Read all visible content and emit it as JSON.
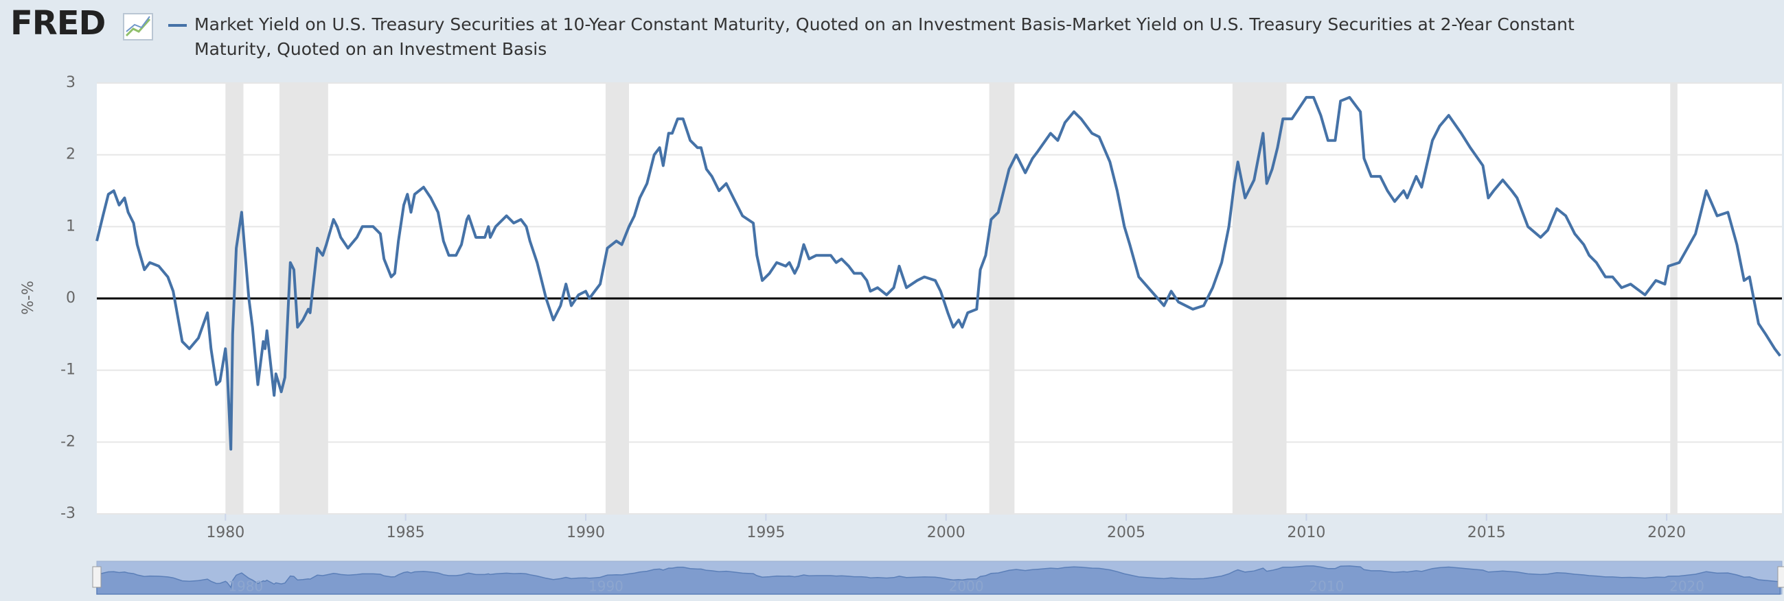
{
  "logo": "FRED",
  "chart_data": {
    "type": "line",
    "y_label": "%-%",
    "x": [
      1976.43,
      1976.6,
      1976.75,
      1976.9,
      1977.05,
      1977.2,
      1977.3,
      1977.45,
      1977.55,
      1977.75,
      1977.9,
      1978.15,
      1978.4,
      1978.55,
      1978.8,
      1979.0,
      1979.25,
      1979.5,
      1979.6,
      1979.75,
      1979.85,
      1980.0,
      1980.05,
      1980.15,
      1980.2,
      1980.3,
      1980.45,
      1980.65,
      1980.75,
      1980.9,
      1981.05,
      1981.1,
      1981.15,
      1981.35,
      1981.4,
      1981.55,
      1981.65,
      1981.8,
      1981.9,
      1982.0,
      1982.15,
      1982.3,
      1982.35,
      1982.55,
      1982.7,
      1982.8,
      1983.0,
      1983.1,
      1983.2,
      1983.4,
      1983.65,
      1983.8,
      1984.1,
      1984.3,
      1984.4,
      1984.6,
      1984.7,
      1984.8,
      1984.95,
      1985.05,
      1985.15,
      1985.25,
      1985.5,
      1985.7,
      1985.9,
      1986.05,
      1986.2,
      1986.4,
      1986.55,
      1986.7,
      1986.75,
      1986.95,
      1987.2,
      1987.3,
      1987.35,
      1987.5,
      1987.8,
      1988.0,
      1988.2,
      1988.35,
      1988.45,
      1988.65,
      1988.9,
      1989.1,
      1989.3,
      1989.45,
      1989.6,
      1989.8,
      1990.0,
      1990.1,
      1990.25,
      1990.4,
      1990.6,
      1990.85,
      1991.0,
      1991.2,
      1991.35,
      1991.5,
      1991.7,
      1991.9,
      1992.05,
      1992.15,
      1992.3,
      1992.4,
      1992.55,
      1992.7,
      1992.9,
      1993.1,
      1993.2,
      1993.35,
      1993.5,
      1993.7,
      1993.9,
      1994.1,
      1994.35,
      1994.65,
      1994.75,
      1994.9,
      1995.1,
      1995.3,
      1995.55,
      1995.65,
      1995.8,
      1995.9,
      1996.05,
      1996.2,
      1996.4,
      1996.8,
      1996.95,
      1997.1,
      1997.3,
      1997.45,
      1997.65,
      1997.8,
      1997.9,
      1998.1,
      1998.35,
      1998.55,
      1998.7,
      1998.9,
      1999.2,
      1999.4,
      1999.7,
      1999.85,
      2000.05,
      2000.2,
      2000.35,
      2000.45,
      2000.6,
      2000.85,
      2000.95,
      2001.1,
      2001.25,
      2001.45,
      2001.75,
      2001.95,
      2002.2,
      2002.4,
      2002.55,
      2002.9,
      2003.1,
      2003.3,
      2003.55,
      2003.75,
      2004.05,
      2004.25,
      2004.55,
      2004.75,
      2004.95,
      2005.1,
      2005.35,
      2005.7,
      2006.05,
      2006.25,
      2006.45,
      2006.85,
      2007.15,
      2007.4,
      2007.65,
      2007.85,
      2008.0,
      2008.1,
      2008.3,
      2008.55,
      2008.8,
      2008.9,
      2009.05,
      2009.2,
      2009.35,
      2009.6,
      2010.0,
      2010.2,
      2010.4,
      2010.6,
      2010.8,
      2010.95,
      2011.2,
      2011.5,
      2011.6,
      2011.8,
      2012.05,
      2012.25,
      2012.45,
      2012.7,
      2012.8,
      2013.05,
      2013.2,
      2013.5,
      2013.7,
      2013.95,
      2014.3,
      2014.55,
      2014.9,
      2015.05,
      2015.2,
      2015.45,
      2015.7,
      2015.85,
      2016.15,
      2016.5,
      2016.7,
      2016.95,
      2017.2,
      2017.45,
      2017.7,
      2017.85,
      2018.05,
      2018.3,
      2018.5,
      2018.75,
      2019.0,
      2019.4,
      2019.7,
      2019.95,
      2020.05,
      2020.35,
      2020.8,
      2021.1,
      2021.4,
      2021.7,
      2021.95,
      2022.15,
      2022.3,
      2022.55,
      2022.75,
      2023.0,
      2023.15
    ],
    "series": [
      {
        "name": "Market Yield on U.S. Treasury Securities at 10-Year Constant Maturity, Quoted on an Investment Basis-Market Yield on U.S. Treasury Securities at 2-Year Constant Maturity, Quoted on an Investment Basis",
        "color": "#4572a7",
        "values": [
          0.8,
          1.15,
          1.45,
          1.5,
          1.3,
          1.4,
          1.2,
          1.05,
          0.75,
          0.4,
          0.5,
          0.45,
          0.3,
          0.1,
          -0.6,
          -0.7,
          -0.55,
          -0.2,
          -0.7,
          -1.2,
          -1.15,
          -0.7,
          -1.0,
          -2.1,
          -0.5,
          0.7,
          1.2,
          0.0,
          -0.4,
          -1.2,
          -0.6,
          -0.7,
          -0.45,
          -1.35,
          -1.05,
          -1.3,
          -1.1,
          0.5,
          0.4,
          -0.4,
          -0.3,
          -0.15,
          -0.2,
          0.7,
          0.6,
          0.75,
          1.1,
          1.0,
          0.85,
          0.7,
          0.85,
          1.0,
          1.0,
          0.9,
          0.55,
          0.3,
          0.35,
          0.8,
          1.3,
          1.45,
          1.2,
          1.45,
          1.55,
          1.4,
          1.2,
          0.8,
          0.6,
          0.6,
          0.75,
          1.1,
          1.15,
          0.85,
          0.85,
          1.0,
          0.85,
          1.0,
          1.15,
          1.05,
          1.1,
          1.0,
          0.8,
          0.5,
          0.0,
          -0.3,
          -0.1,
          0.2,
          -0.1,
          0.05,
          0.1,
          0.0,
          0.1,
          0.2,
          0.7,
          0.8,
          0.75,
          1.0,
          1.15,
          1.4,
          1.6,
          2.0,
          2.1,
          1.85,
          2.3,
          2.3,
          2.5,
          2.5,
          2.2,
          2.1,
          2.1,
          1.8,
          1.7,
          1.5,
          1.6,
          1.4,
          1.15,
          1.05,
          0.6,
          0.25,
          0.35,
          0.5,
          0.45,
          0.5,
          0.35,
          0.45,
          0.75,
          0.55,
          0.6,
          0.6,
          0.5,
          0.55,
          0.45,
          0.35,
          0.35,
          0.25,
          0.1,
          0.15,
          0.05,
          0.15,
          0.45,
          0.15,
          0.25,
          0.3,
          0.25,
          0.1,
          -0.2,
          -0.4,
          -0.3,
          -0.4,
          -0.2,
          -0.15,
          0.4,
          0.6,
          1.1,
          1.2,
          1.8,
          2.0,
          1.75,
          1.95,
          2.05,
          2.3,
          2.2,
          2.45,
          2.6,
          2.5,
          2.3,
          2.25,
          1.9,
          1.5,
          1.0,
          0.75,
          0.3,
          0.1,
          -0.1,
          0.1,
          -0.05,
          -0.15,
          -0.1,
          0.15,
          0.5,
          1.0,
          1.6,
          1.9,
          1.4,
          1.65,
          2.3,
          1.6,
          1.8,
          2.1,
          2.5,
          2.5,
          2.8,
          2.8,
          2.55,
          2.2,
          2.2,
          2.75,
          2.8,
          2.6,
          1.95,
          1.7,
          1.7,
          1.5,
          1.35,
          1.5,
          1.4,
          1.7,
          1.55,
          2.2,
          2.4,
          2.55,
          2.3,
          2.1,
          1.85,
          1.4,
          1.5,
          1.65,
          1.5,
          1.4,
          1.0,
          0.85,
          0.95,
          1.25,
          1.15,
          0.9,
          0.75,
          0.6,
          0.5,
          0.3,
          0.3,
          0.15,
          0.2,
          0.05,
          0.25,
          0.2,
          0.45,
          0.5,
          0.9,
          1.5,
          1.15,
          1.2,
          0.75,
          0.25,
          0.3,
          -0.35,
          -0.5,
          -0.7,
          -0.8
        ]
      }
    ],
    "recessions": [
      [
        1980.0,
        1980.5
      ],
      [
        1981.5,
        1982.85
      ],
      [
        1990.55,
        1991.2
      ],
      [
        2001.2,
        2001.9
      ],
      [
        2007.95,
        2009.45
      ],
      [
        2020.1,
        2020.3
      ]
    ],
    "xlim": [
      1976.43,
      2023.2
    ],
    "ylim": [
      -3,
      3
    ],
    "xticks": [
      1980,
      1985,
      1990,
      1995,
      2000,
      2005,
      2010,
      2015,
      2020
    ],
    "yticks": [
      -3,
      -2,
      -1,
      0,
      1,
      2,
      3
    ],
    "grid": true,
    "navigator_ticks": [
      1980,
      1990,
      2000,
      2010,
      2020
    ]
  }
}
